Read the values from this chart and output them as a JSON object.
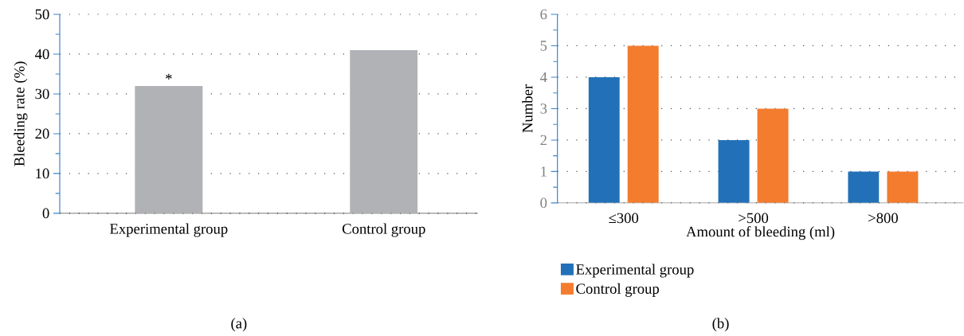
{
  "chart_data": [
    {
      "type": "bar",
      "categories": [
        "Experimental group",
        "Control group"
      ],
      "values": [
        32,
        41
      ],
      "color": "#b1b2b6",
      "ylabel": "Bleeding rate (%)",
      "ylim": [
        0,
        50
      ],
      "yticks": [
        0,
        10,
        20,
        30,
        40,
        50
      ],
      "grid": "y",
      "annotations": [
        {
          "text": "*",
          "x": "Experimental group",
          "y": 32
        },
        "(a)"
      ]
    },
    {
      "type": "bar",
      "categories": [
        "≤300",
        ">500",
        ">800"
      ],
      "xlabel": "Amount of bleeding (ml)",
      "ylabel": "Number",
      "ylim": [
        0,
        6
      ],
      "yticks": [
        0,
        1,
        2,
        3,
        4,
        5,
        6
      ],
      "grid": "y",
      "legend": "bottom",
      "series": [
        {
          "name": "Experimental group",
          "color": "#2271b8",
          "values": [
            4,
            2,
            1
          ]
        },
        {
          "name": "Control group",
          "color": "#f37c2f",
          "values": [
            5,
            3,
            1
          ]
        }
      ],
      "annotations": [
        "(b)"
      ]
    }
  ]
}
